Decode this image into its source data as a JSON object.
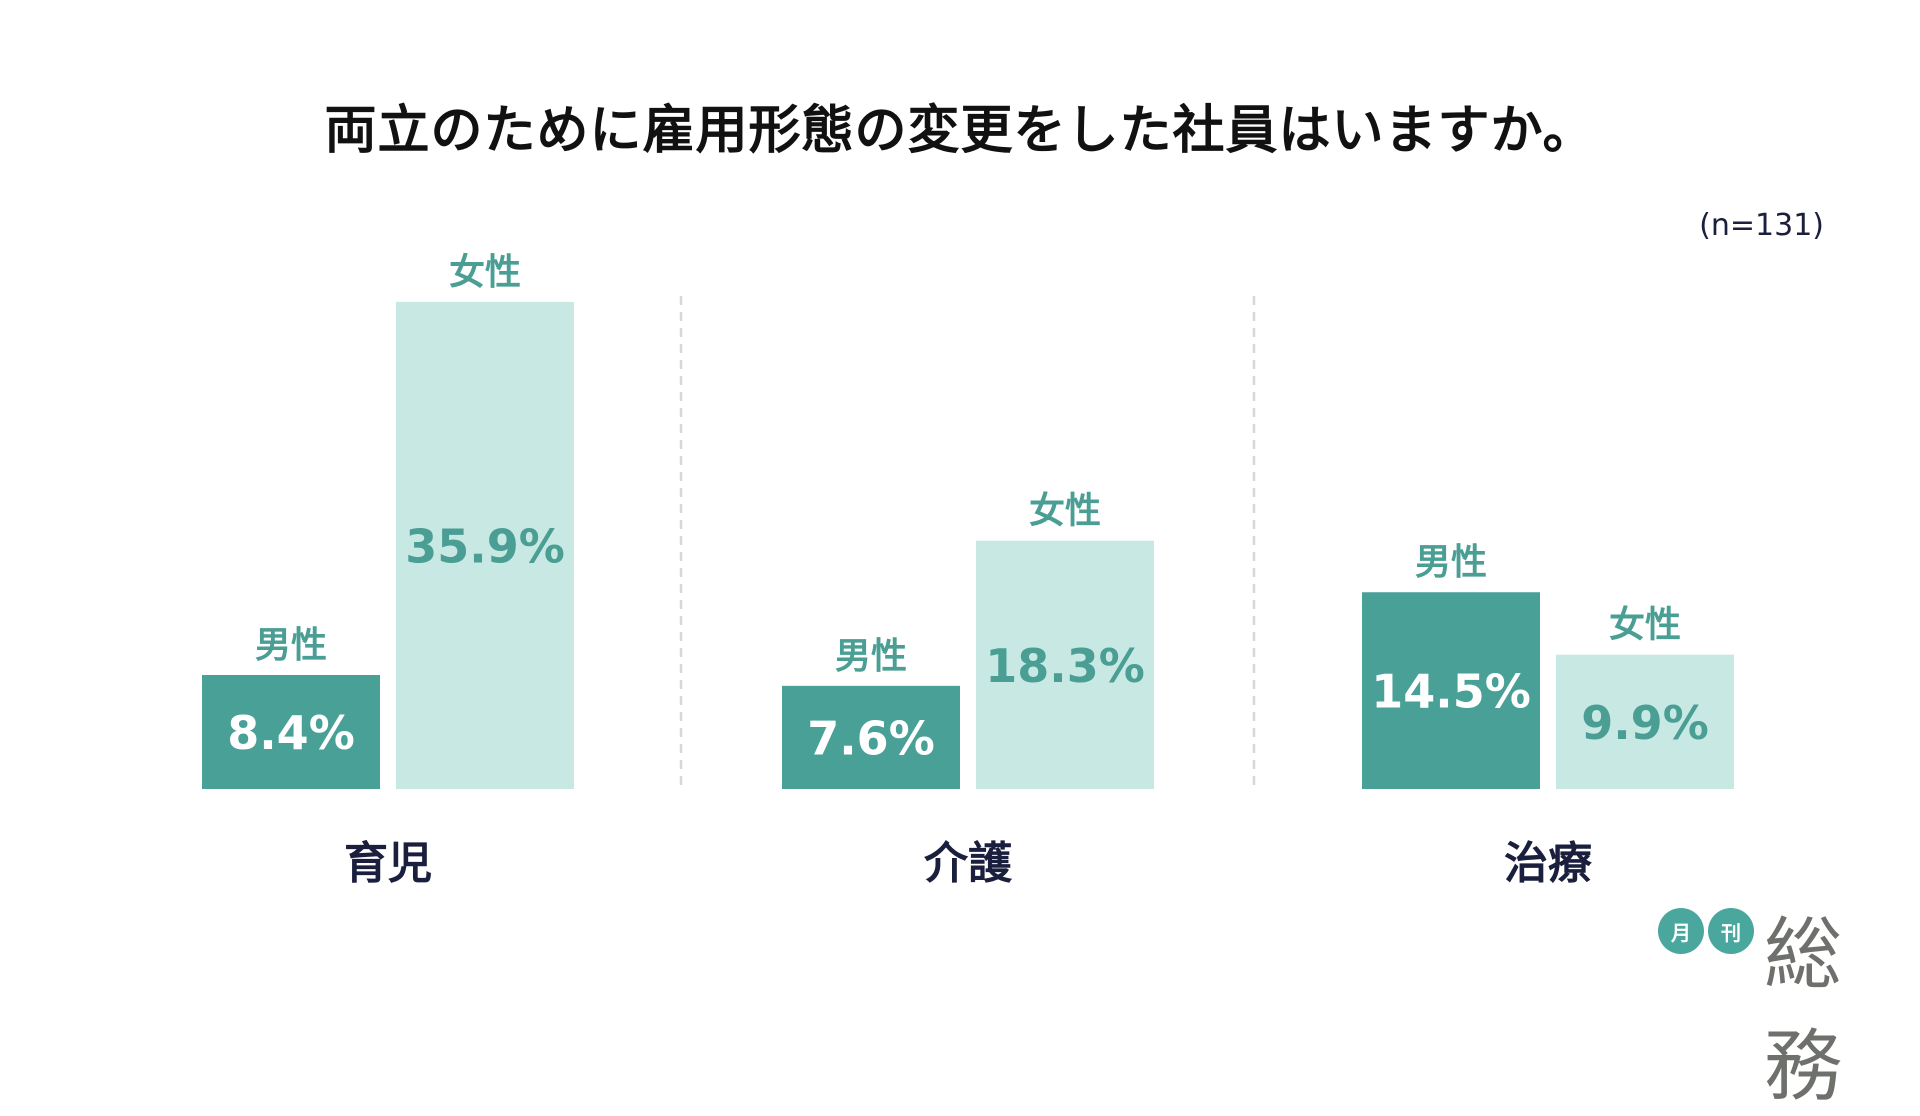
{
  "chart_data": {
    "type": "bar",
    "title": "両立のために雇用形態の変更をした社員はいますか。",
    "note": "(n=131)",
    "categories": [
      "育児",
      "介護",
      "治療"
    ],
    "series": [
      {
        "name": "男性",
        "values": [
          8.4,
          7.6,
          14.5
        ],
        "color": "#48a097",
        "value_label_color": "#ffffff"
      },
      {
        "name": "女性",
        "values": [
          35.9,
          18.3,
          9.9
        ],
        "color": "#c8e8e4",
        "value_label_color": "#4a9e94"
      }
    ],
    "value_format": "{v}%",
    "unit": "%",
    "series_label_color": "#4a9e94",
    "category_label_color": "#1a1f3d",
    "grid": false,
    "legend": "none (series names labeled above each bar)"
  },
  "logo": {
    "circle1": "月",
    "circle2": "刊",
    "text": "総務"
  }
}
